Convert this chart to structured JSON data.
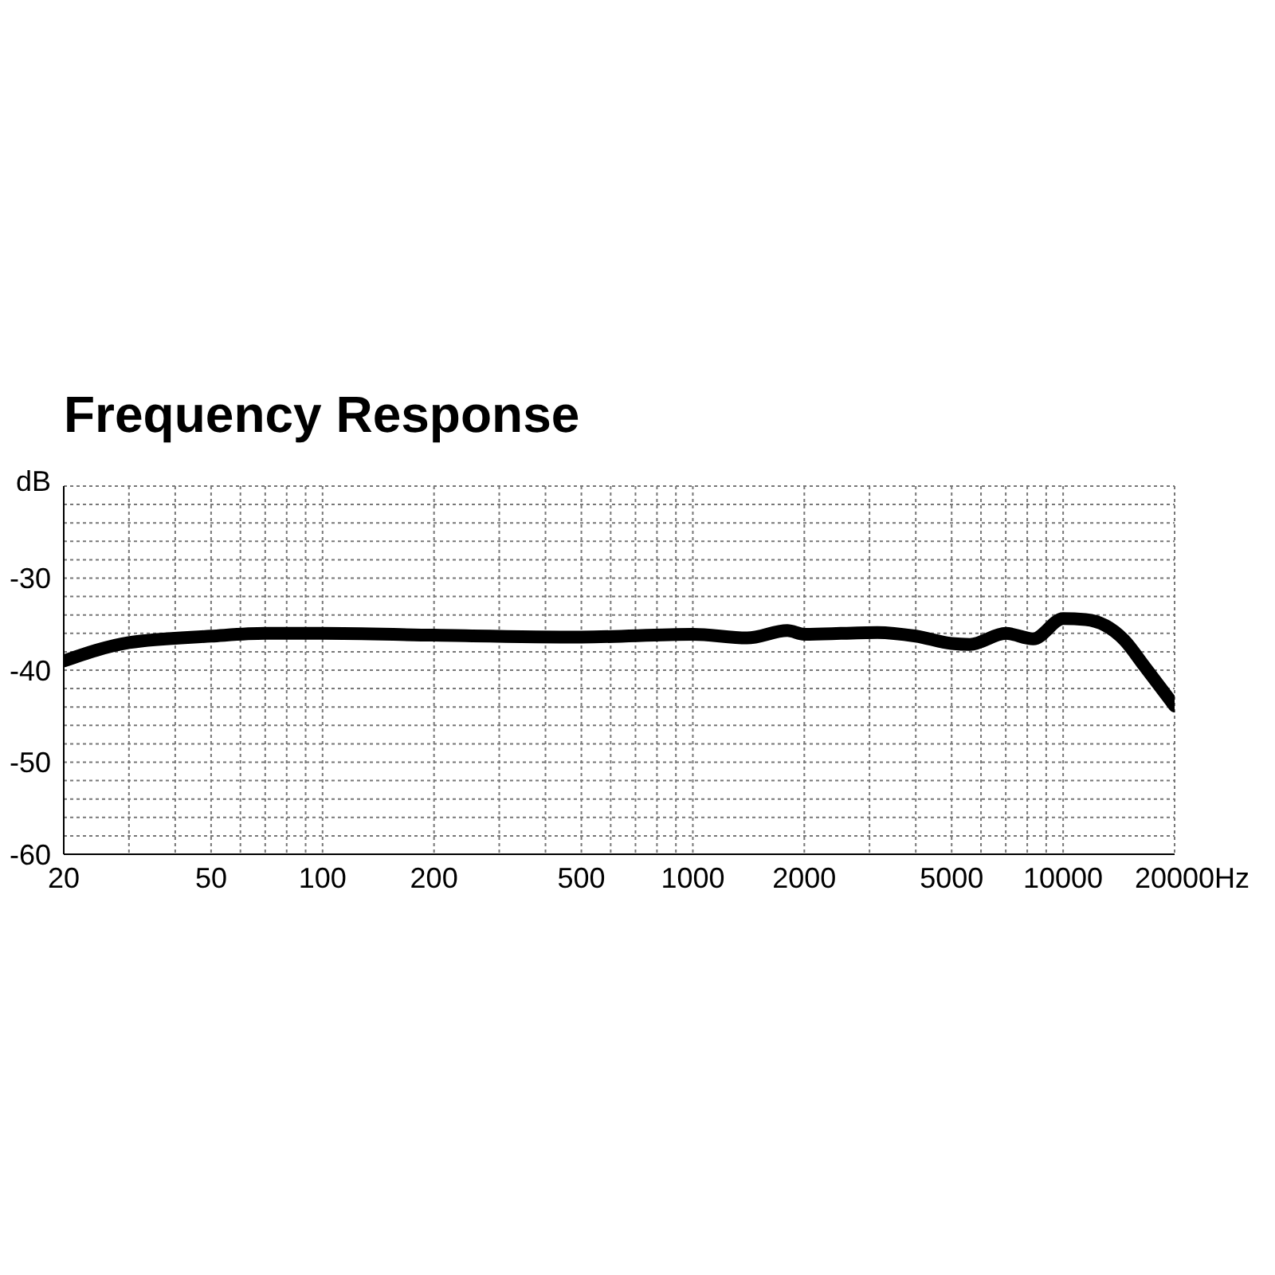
{
  "chart_data": {
    "type": "line",
    "title": "Frequency Response",
    "xlabel": "Hz",
    "ylabel": "dB",
    "log": "x",
    "grid": true,
    "xlim": [
      20,
      20000
    ],
    "xticks": [
      20,
      {
        "value": 30,
        "label": null
      },
      {
        "value": 40,
        "label": null
      },
      50,
      {
        "value": 60,
        "label": null
      },
      {
        "value": 70,
        "label": null
      },
      {
        "value": 80,
        "label": null
      },
      {
        "value": 90,
        "label": null
      },
      100,
      200,
      {
        "value": 300,
        "label": null
      },
      {
        "value": 400,
        "label": null
      },
      500,
      {
        "value": 600,
        "label": null
      },
      {
        "value": 700,
        "label": null
      },
      {
        "value": 800,
        "label": null
      },
      {
        "value": 900,
        "label": null
      },
      1000,
      2000,
      {
        "value": 3000,
        "label": null
      },
      {
        "value": 4000,
        "label": null
      },
      5000,
      {
        "value": 6000,
        "label": null
      },
      {
        "value": 7000,
        "label": null
      },
      {
        "value": 8000,
        "label": null
      },
      {
        "value": 9000,
        "label": null
      },
      10000,
      20000
    ],
    "ylim": [
      -60,
      -20
    ],
    "yticks": [
      -60,
      {
        "value": -58,
        "label": null
      },
      {
        "value": -56,
        "label": null
      },
      {
        "value": -54,
        "label": null
      },
      {
        "value": -52,
        "label": null
      },
      -50,
      {
        "value": -48,
        "label": null
      },
      {
        "value": -46,
        "label": null
      },
      {
        "value": -44,
        "label": null
      },
      {
        "value": -42,
        "label": null
      },
      -40,
      {
        "value": -38,
        "label": null
      },
      {
        "value": -36,
        "label": null
      },
      {
        "value": -34,
        "label": null
      },
      {
        "value": -32,
        "label": null
      },
      -30,
      {
        "value": -28,
        "label": null
      },
      {
        "value": -26,
        "label": null
      },
      {
        "value": -24,
        "label": null
      },
      {
        "value": -22,
        "label": null
      },
      {
        "value": -20,
        "label": null
      }
    ],
    "x": [
      20,
      30,
      50,
      70,
      100,
      200,
      500,
      1000,
      1400,
      1800,
      2000,
      3150,
      4000,
      5000,
      5600,
      7000,
      8300,
      10000,
      11500,
      14600,
      16600,
      20000
    ],
    "series": [
      {
        "color": "#000000",
        "values": [
          -39.0,
          -37.0,
          -36.3,
          -36.0,
          -36.0,
          -36.2,
          -36.4,
          -36.1,
          -36.5,
          -35.7,
          -36.1,
          -35.9,
          -36.3,
          -37.1,
          -37.2,
          -36.0,
          -36.6,
          -34.4,
          -34.5,
          -36.7,
          -39.6,
          -43.9
        ]
      }
    ]
  }
}
